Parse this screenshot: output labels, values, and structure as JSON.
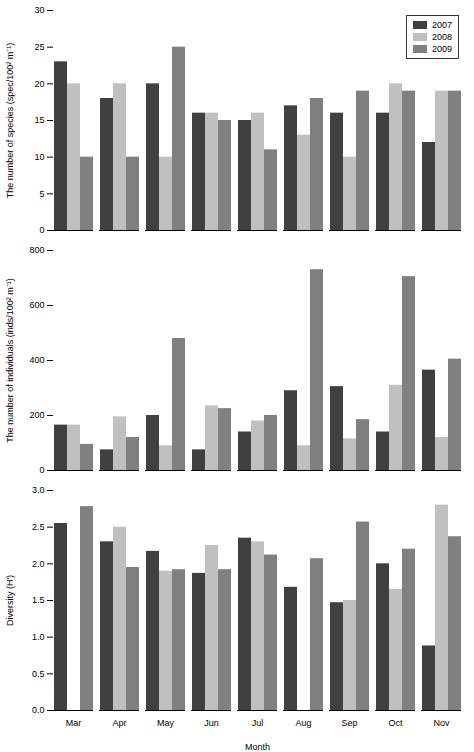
{
  "chart_data": [
    {
      "type": "bar",
      "categories": [
        "Mar",
        "Apr",
        "May",
        "Jun",
        "Jul",
        "Aug",
        "Sep",
        "Oct",
        "Nov"
      ],
      "series": [
        {
          "name": "2007",
          "color": "#404040",
          "values": [
            23,
            18,
            20,
            16,
            15,
            17,
            16,
            16,
            12
          ]
        },
        {
          "name": "2008",
          "color": "#c0c0c0",
          "values": [
            20,
            20,
            10,
            16,
            16,
            13,
            10,
            20,
            19
          ]
        },
        {
          "name": "2009",
          "color": "#808080",
          "values": [
            10,
            10,
            25,
            15,
            11,
            18,
            19,
            19,
            19
          ]
        }
      ],
      "ylabel": "The number of species (spec/100² m⁻¹)",
      "ylim": [
        0,
        30
      ],
      "yticks": [
        0,
        5,
        10,
        15,
        20,
        25,
        30
      ],
      "legend": "upper right",
      "tick_labels": "y"
    },
    {
      "type": "bar",
      "categories": [
        "Mar",
        "Apr",
        "May",
        "Jun",
        "Jul",
        "Aug",
        "Sep",
        "Oct",
        "Nov"
      ],
      "series": [
        {
          "name": "2007",
          "color": "#404040",
          "values": [
            165,
            75,
            200,
            75,
            140,
            290,
            305,
            140,
            365
          ]
        },
        {
          "name": "2008",
          "color": "#c0c0c0",
          "values": [
            165,
            195,
            90,
            235,
            180,
            90,
            115,
            310,
            120
          ]
        },
        {
          "name": "2009",
          "color": "#808080",
          "values": [
            95,
            120,
            480,
            225,
            200,
            730,
            185,
            705,
            405
          ]
        }
      ],
      "ylabel": "The number of individuals (inds/100² m⁻¹)",
      "ylim": [
        0,
        800
      ],
      "yticks": [
        0,
        200,
        400,
        600,
        800
      ],
      "tick_labels": "y"
    },
    {
      "type": "bar",
      "categories": [
        "Mar",
        "Apr",
        "May",
        "Jun",
        "Jul",
        "Aug",
        "Sep",
        "Oct",
        "Nov"
      ],
      "series": [
        {
          "name": "2007",
          "color": "#404040",
          "values": [
            2.55,
            2.3,
            2.17,
            1.87,
            2.35,
            1.68,
            1.47,
            2.0,
            0.88
          ]
        },
        {
          "name": "2008",
          "color": "#c0c0c0",
          "values": [
            null,
            2.5,
            1.9,
            2.25,
            2.3,
            null,
            1.5,
            1.65,
            2.8
          ]
        },
        {
          "name": "2009",
          "color": "#808080",
          "values": [
            2.78,
            1.95,
            1.92,
            1.92,
            2.12,
            2.07,
            2.57,
            2.2,
            2.37
          ]
        }
      ],
      "xlabel": "Month",
      "ylabel": "Diversity (H')",
      "ylim": [
        0,
        3
      ],
      "yticks": [
        {
          "value": 0,
          "label": "0.0"
        },
        0.5,
        {
          "value": 1,
          "label": "1.0"
        },
        1.5,
        {
          "value": 2,
          "label": "2.0"
        },
        2.5,
        {
          "value": 3,
          "label": "3.0"
        }
      ]
    }
  ]
}
